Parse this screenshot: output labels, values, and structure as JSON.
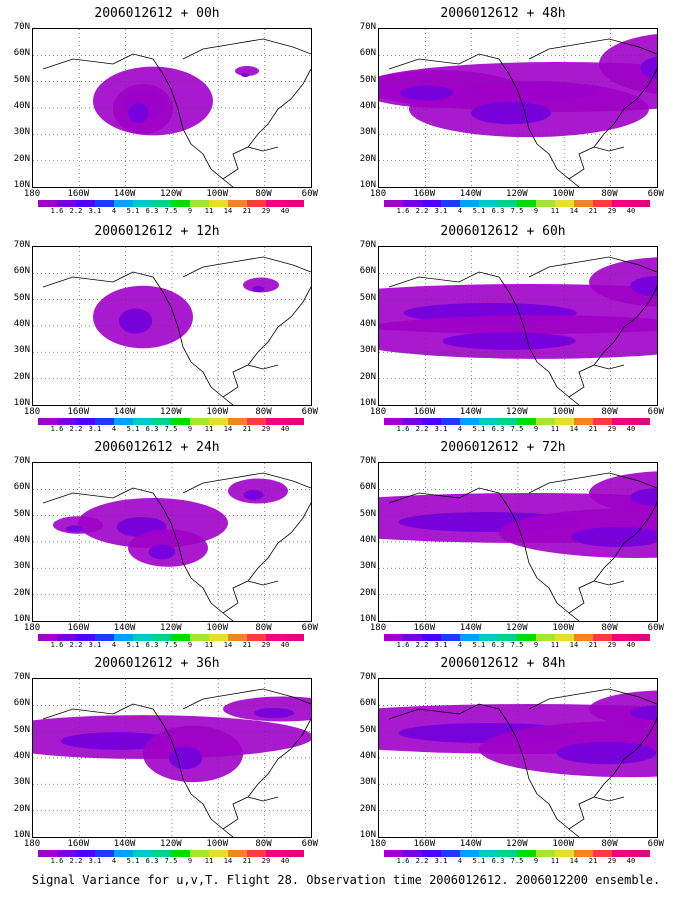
{
  "panels": [
    {
      "title": "2006012612 + 00h",
      "blobs": [
        [
          120,
          72,
          60,
          55
        ],
        [
          214,
          42,
          12,
          8
        ],
        [
          110,
          80,
          30,
          40
        ]
      ]
    },
    {
      "title": "2006012612 + 48h",
      "blobs": [
        [
          180,
          58,
          200,
          40
        ],
        [
          300,
          35,
          80,
          50
        ],
        [
          150,
          80,
          120,
          45
        ],
        [
          60,
          60,
          80,
          30
        ]
      ]
    },
    {
      "title": "2006012612 + 12h",
      "blobs": [
        [
          110,
          70,
          50,
          50
        ],
        [
          228,
          38,
          18,
          12
        ]
      ]
    },
    {
      "title": "2006012612 + 60h",
      "blobs": [
        [
          150,
          62,
          260,
          40
        ],
        [
          290,
          35,
          80,
          40
        ],
        [
          160,
          90,
          200,
          35
        ]
      ]
    },
    {
      "title": "2006012612 + 24h",
      "blobs": [
        [
          120,
          60,
          75,
          40
        ],
        [
          45,
          62,
          25,
          14
        ],
        [
          225,
          28,
          30,
          20
        ],
        [
          135,
          85,
          40,
          30
        ]
      ]
    },
    {
      "title": "2006012612 + 72h",
      "blobs": [
        [
          150,
          55,
          270,
          40
        ],
        [
          260,
          70,
          140,
          40
        ],
        [
          290,
          30,
          80,
          35
        ]
      ]
    },
    {
      "title": "2006012612 + 36h",
      "blobs": [
        [
          110,
          58,
          170,
          35
        ],
        [
          160,
          75,
          50,
          45
        ],
        [
          250,
          30,
          60,
          20
        ]
      ]
    },
    {
      "title": "2006012612 + 84h",
      "blobs": [
        [
          150,
          50,
          270,
          40
        ],
        [
          250,
          70,
          150,
          45
        ],
        [
          290,
          30,
          80,
          30
        ]
      ]
    }
  ],
  "y_labels": [
    "70N",
    "60N",
    "50N",
    "40N",
    "30N",
    "20N",
    "10N"
  ],
  "x_labels": [
    "180",
    "160W",
    "140W",
    "120W",
    "100W",
    "80W",
    "60W"
  ],
  "colorbar": {
    "labels": [
      "1.6",
      "2.2",
      "3.1",
      "4",
      "5.1",
      "6.3",
      "7.5",
      "9",
      "11",
      "14",
      "21",
      "29",
      "40"
    ],
    "colors": [
      "#a000c8",
      "#7800dc",
      "#5000ff",
      "#1e3cff",
      "#00a0ff",
      "#00c8c8",
      "#00d28c",
      "#00dc00",
      "#a0e632",
      "#e6dc32",
      "#f08228",
      "#fa3c3c",
      "#f00082",
      "#e6007a"
    ]
  },
  "caption": "Signal Variance for u,v,T. Flight 28. Observation time 2006012612. 2006012200 ensemble."
}
